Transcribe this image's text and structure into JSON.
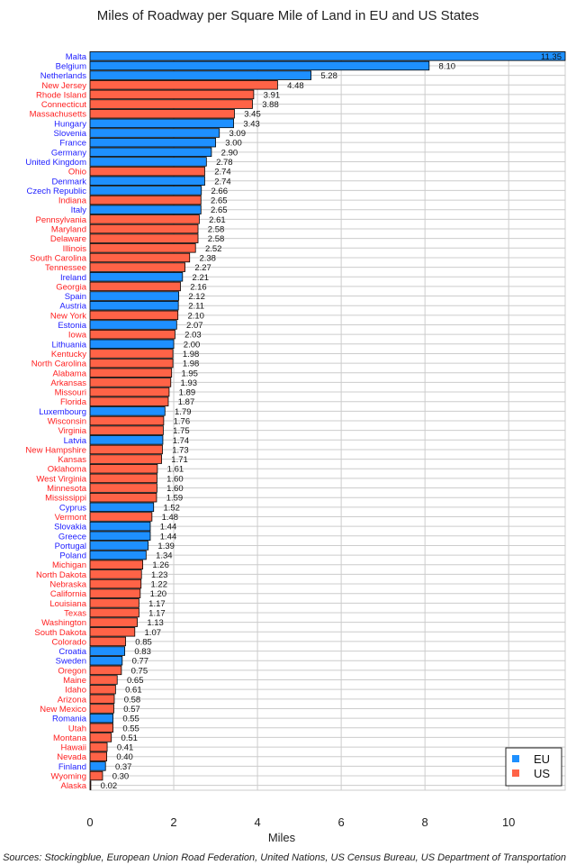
{
  "chart_data": {
    "type": "bar",
    "orientation": "horizontal",
    "title": "Miles of Roadway per Square Mile of Land in EU and US States",
    "xlabel": "Miles",
    "ylabel": "",
    "xlim": [
      0,
      11.35
    ],
    "xticks": [
      0,
      2,
      4,
      6,
      8,
      10
    ],
    "grid": true,
    "legend_position": "bottom-right",
    "colors": {
      "EU": "#1e90ff",
      "US": "#ff6347"
    },
    "label_colors": {
      "EU": "#2020ff",
      "US": "#ff2020"
    },
    "legend": [
      "EU",
      "US"
    ],
    "source": "Sources: Stockingblue, European Union Road Federation, United Nations, US Census Bureau, US Department of Transportation",
    "rows": [
      [
        "Malta",
        11.35,
        "EU"
      ],
      [
        "Belgium",
        8.1,
        "EU"
      ],
      [
        "Netherlands",
        5.28,
        "EU"
      ],
      [
        "New Jersey",
        4.48,
        "US"
      ],
      [
        "Rhode Island",
        3.91,
        "US"
      ],
      [
        "Connecticut",
        3.88,
        "US"
      ],
      [
        "Massachusetts",
        3.45,
        "US"
      ],
      [
        "Hungary",
        3.43,
        "EU"
      ],
      [
        "Slovenia",
        3.09,
        "EU"
      ],
      [
        "France",
        3.0,
        "EU"
      ],
      [
        "Germany",
        2.9,
        "EU"
      ],
      [
        "United Kingdom",
        2.78,
        "EU"
      ],
      [
        "Ohio",
        2.74,
        "US"
      ],
      [
        "Denmark",
        2.74,
        "EU"
      ],
      [
        "Czech Republic",
        2.66,
        "EU"
      ],
      [
        "Indiana",
        2.65,
        "US"
      ],
      [
        "Italy",
        2.65,
        "EU"
      ],
      [
        "Pennsylvania",
        2.61,
        "US"
      ],
      [
        "Maryland",
        2.58,
        "US"
      ],
      [
        "Delaware",
        2.58,
        "US"
      ],
      [
        "Illinois",
        2.52,
        "US"
      ],
      [
        "South Carolina",
        2.38,
        "US"
      ],
      [
        "Tennessee",
        2.27,
        "US"
      ],
      [
        "Ireland",
        2.21,
        "EU"
      ],
      [
        "Georgia",
        2.16,
        "US"
      ],
      [
        "Spain",
        2.12,
        "EU"
      ],
      [
        "Austria",
        2.11,
        "EU"
      ],
      [
        "New York",
        2.1,
        "US"
      ],
      [
        "Estonia",
        2.07,
        "EU"
      ],
      [
        "Iowa",
        2.03,
        "US"
      ],
      [
        "Lithuania",
        2.0,
        "EU"
      ],
      [
        "Kentucky",
        1.98,
        "US"
      ],
      [
        "North Carolina",
        1.98,
        "US"
      ],
      [
        "Alabama",
        1.95,
        "US"
      ],
      [
        "Arkansas",
        1.93,
        "US"
      ],
      [
        "Missouri",
        1.89,
        "US"
      ],
      [
        "Florida",
        1.87,
        "US"
      ],
      [
        "Luxembourg",
        1.79,
        "EU"
      ],
      [
        "Wisconsin",
        1.76,
        "US"
      ],
      [
        "Virginia",
        1.75,
        "US"
      ],
      [
        "Latvia",
        1.74,
        "EU"
      ],
      [
        "New Hampshire",
        1.73,
        "US"
      ],
      [
        "Kansas",
        1.71,
        "US"
      ],
      [
        "Oklahoma",
        1.61,
        "US"
      ],
      [
        "West Virginia",
        1.6,
        "US"
      ],
      [
        "Minnesota",
        1.6,
        "US"
      ],
      [
        "Mississippi",
        1.59,
        "US"
      ],
      [
        "Cyprus",
        1.52,
        "EU"
      ],
      [
        "Vermont",
        1.48,
        "US"
      ],
      [
        "Slovakia",
        1.44,
        "EU"
      ],
      [
        "Greece",
        1.44,
        "EU"
      ],
      [
        "Portugal",
        1.39,
        "EU"
      ],
      [
        "Poland",
        1.34,
        "EU"
      ],
      [
        "Michigan",
        1.26,
        "US"
      ],
      [
        "North Dakota",
        1.23,
        "US"
      ],
      [
        "Nebraska",
        1.22,
        "US"
      ],
      [
        "California",
        1.2,
        "US"
      ],
      [
        "Louisiana",
        1.17,
        "US"
      ],
      [
        "Texas",
        1.17,
        "US"
      ],
      [
        "Washington",
        1.13,
        "US"
      ],
      [
        "South Dakota",
        1.07,
        "US"
      ],
      [
        "Colorado",
        0.85,
        "US"
      ],
      [
        "Croatia",
        0.83,
        "EU"
      ],
      [
        "Sweden",
        0.77,
        "EU"
      ],
      [
        "Oregon",
        0.75,
        "US"
      ],
      [
        "Maine",
        0.65,
        "US"
      ],
      [
        "Idaho",
        0.61,
        "US"
      ],
      [
        "Arizona",
        0.58,
        "US"
      ],
      [
        "New Mexico",
        0.57,
        "US"
      ],
      [
        "Romania",
        0.55,
        "EU"
      ],
      [
        "Utah",
        0.55,
        "US"
      ],
      [
        "Montana",
        0.51,
        "US"
      ],
      [
        "Hawaii",
        0.41,
        "US"
      ],
      [
        "Nevada",
        0.4,
        "US"
      ],
      [
        "Finland",
        0.37,
        "EU"
      ],
      [
        "Wyoming",
        0.3,
        "US"
      ],
      [
        "Alaska",
        0.02,
        "US"
      ]
    ]
  }
}
